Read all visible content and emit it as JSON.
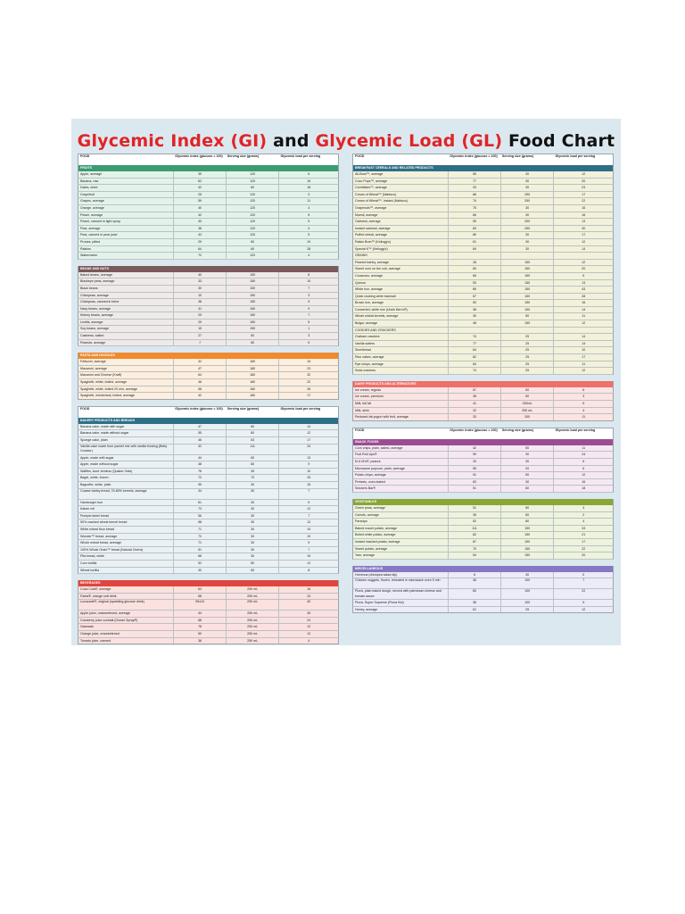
{
  "title": {
    "part1": "Glycemic Index (GI)",
    "and": "and",
    "part2": "Glycemic Load (GL)",
    "part3": "Food Chart"
  },
  "headers": {
    "food": "FOOD",
    "gi": "Glycemic index (glucose = 100)",
    "serving": "Serving size (grams)",
    "gl": "Glycemic load per serving"
  },
  "colors": {
    "fruits": "#3a9b74",
    "beans": "#7a5a5a",
    "pasta": "#f08a2e",
    "bakery": "#2e6f86",
    "beverages": "#e0463e",
    "breakfast": "#2e6f86",
    "dairy": "#ef6f6a",
    "snack": "#9b4d93",
    "vegetables": "#8aa637",
    "misc": "#8877c2"
  },
  "left": [
    {
      "header": true,
      "sections": [
        {
          "name": "FRUITS",
          "key": "fruits",
          "bg": "#e4f3ea",
          "rows": [
            [
              "Apple, average",
              "39",
              "120",
              "6"
            ],
            [
              "Banana, raw",
              "62",
              "120",
              "16"
            ],
            [
              "Dates, dried",
              "42",
              "60",
              "18"
            ],
            [
              "Grapefruit",
              "25",
              "120",
              "3"
            ],
            [
              "Grapes, average",
              "59",
              "120",
              "11"
            ],
            [
              "Orange, average",
              "40",
              "120",
              "4"
            ],
            [
              "Peach, average",
              "42",
              "120",
              "5"
            ],
            [
              "Peach, canned in light syrup",
              "40",
              "120",
              "5"
            ],
            [
              "Pear, average",
              "38",
              "120",
              "4"
            ],
            [
              "Pear, canned in pear juice",
              "43",
              "120",
              "5"
            ],
            [
              "Prunes, pitted",
              "29",
              "60",
              "10"
            ],
            [
              "Raisins",
              "64",
              "60",
              "28"
            ],
            [
              "Watermelon",
              "72",
              "120",
              "4"
            ]
          ]
        },
        {
          "name": "BEANS AND NUTS",
          "key": "beans",
          "bg": "#efe9e8",
          "rows": [
            [
              "Baked beans, average",
              "40",
              "150",
              "6"
            ],
            [
              "Blackeye peas, average",
              "33",
              "150",
              "10"
            ],
            [
              "Black beans",
              "30",
              "150",
              "7"
            ],
            [
              "Chickpeas, average",
              "10",
              "150",
              "3"
            ],
            [
              "Chickpeas, canned in brine",
              "38",
              "150",
              "9"
            ],
            [
              "Navy beans, average",
              "31",
              "150",
              "9"
            ],
            [
              "Kidney beans, average",
              "29",
              "150",
              "7"
            ],
            [
              "Lentils, average",
              "29",
              "150",
              "5"
            ],
            [
              "Soy beans, average",
              "15",
              "150",
              "1"
            ],
            [
              "Cashews, salted",
              "27",
              "50",
              "3"
            ],
            [
              "Peanuts, average",
              "7",
              "50",
              "0"
            ]
          ]
        },
        {
          "name": "PASTA and NOODLES",
          "key": "pasta",
          "bg": "#fdeedd",
          "rows": [
            [
              "Fettucini, average",
              "32",
              "180",
              "15"
            ],
            [
              "Macaroni, average",
              "47",
              "180",
              "23"
            ],
            [
              "Macaroni and Cheese (Kraft)",
              "64",
              "180",
              "32"
            ],
            [
              "Spaghetti, white, boiled, average",
              "46",
              "180",
              "22"
            ],
            [
              "Spaghetti, white, boiled 20 min, average",
              "58",
              "180",
              "26"
            ],
            [
              "Spaghetti, wholemeal, boiled, average",
              "42",
              "180",
              "17"
            ]
          ]
        }
      ]
    },
    {
      "header": true,
      "sections": [
        {
          "name": "BAKERY PRODUCTS AND BREADS",
          "key": "bakery",
          "bg": "#eaf1f4",
          "rows": [
            [
              "Banana cake, made with sugar",
              "47",
              "60",
              "14"
            ],
            [
              "Banana cake, made without sugar",
              "55",
              "60",
              "12"
            ],
            [
              "Sponge cake, plain",
              "46",
              "63",
              "17"
            ],
            [
              "Vanilla cake made from packet mix with vanilla frosting (Betty Crocker)",
              "42",
              "111",
              "24"
            ],
            [
              "Apple, made with sugar",
              "44",
              "60",
              "13"
            ],
            [
              "Apple, made without sugar",
              "48",
              "60",
              "9"
            ],
            [
              "Waffles, Aunt Jemima (Quaker Oats)",
              "76",
              "35",
              "10"
            ],
            [
              "Bagel, white, frozen",
              "72",
              "70",
              "25"
            ],
            [
              "Baguette, white, plain",
              "95",
              "30",
              "15"
            ],
            [
              "Coarse barley bread, 75-80% kernels, average",
              "34",
              "30",
              "7"
            ],
            [
              "Hamburger bun",
              "61",
              "30",
              "9"
            ],
            [
              "Kaiser roll",
              "73",
              "30",
              "12"
            ],
            [
              "Pumpernickel bread",
              "56",
              "30",
              "7"
            ],
            [
              "50% cracked wheat kernel bread",
              "58",
              "30",
              "12"
            ],
            [
              "White wheat flour bread",
              "71",
              "30",
              "10"
            ],
            [
              "Wonder™ bread, average",
              "73",
              "30",
              "10"
            ],
            [
              "Whole wheat bread, average",
              "71",
              "30",
              "9"
            ],
            [
              "100% Whole Grain™ bread (Natural Ovens)",
              "51",
              "30",
              "7"
            ],
            [
              "Pita bread, white",
              "68",
              "30",
              "10"
            ],
            [
              "Corn tortilla",
              "52",
              "50",
              "12"
            ],
            [
              "Wheat tortilla",
              "30",
              "50",
              "8"
            ]
          ]
        },
        {
          "name": "BEVERAGES",
          "key": "beverages",
          "bg": "#fbe1df",
          "rows": [
            [
              "Coca Cola®, average",
              "63",
              "250 mL",
              "16"
            ],
            [
              "Fanta®, orange soft drink",
              "68",
              "250 mL",
              "23"
            ],
            [
              "Lucozade®, original (sparkling glucose drink)",
              "95±10",
              "250 mL",
              "40"
            ],
            [
              "Apple juice, unsweetened, average",
              "44",
              "250 mL",
              "30"
            ],
            [
              "Cranberry juice cocktail (Ocean Spray®)",
              "68",
              "250 mL",
              "24"
            ],
            [
              "Gatorade",
              "78",
              "250 mL",
              "12"
            ],
            [
              "Orange juice, unsweetened",
              "50",
              "250 mL",
              "12"
            ],
            [
              "Tomato juice, canned",
              "38",
              "250 mL",
              "4"
            ]
          ]
        }
      ]
    }
  ],
  "right": [
    {
      "header": true,
      "sections": [
        {
          "name": "BREAKFAST CEREALS AND RELATED PRODUCTS",
          "key": "breakfast",
          "bg": "#f3f1da",
          "rows": [
            [
              "All-Bran™, average",
              "55",
              "30",
              "12"
            ],
            [
              "Coco Pops™, average",
              "77",
              "30",
              "20"
            ],
            [
              "Cornflakes™, average",
              "93",
              "30",
              "23"
            ],
            [
              "Cream of Wheat™ (Nabisco)",
              "66",
              "250",
              "17"
            ],
            [
              "Cream of Wheat™, Instant (Nabisco)",
              "74",
              "250",
              "22"
            ],
            [
              "Grapenuts™, average",
              "75",
              "30",
              "16"
            ],
            [
              "Muesli, average",
              "66",
              "30",
              "16"
            ],
            [
              "Oatmeal, average",
              "55",
              "250",
              "13"
            ],
            [
              "Instant oatmeal, average",
              "83",
              "250",
              "30"
            ],
            [
              "Puffed wheat, average",
              "80",
              "30",
              "17"
            ],
            [
              "Raisin Bran™ (Kellogg's)",
              "61",
              "30",
              "12"
            ],
            [
              "Special K™ (Kellogg's)",
              "69",
              "30",
              "14"
            ],
            [
              "GRAINS",
              "",
              "",
              ""
            ],
            [
              "Pearled barley, average",
              "28",
              "150",
              "12"
            ],
            [
              "Sweet corn on the cob, average",
              "60",
              "150",
              "20"
            ],
            [
              "Couscous, average",
              "65",
              "150",
              "9"
            ],
            [
              "Quinoa",
              "53",
              "150",
              "13"
            ],
            [
              "White rice, average",
              "89",
              "150",
              "43"
            ],
            [
              "Quick cooking white basmati",
              "67",
              "150",
              "28"
            ],
            [
              "Brown rice, average",
              "50",
              "150",
              "16"
            ],
            [
              "Converted, white rice (Uncle Ben's®)",
              "38",
              "150",
              "14"
            ],
            [
              "Whole wheat kernels, average",
              "30",
              "50",
              "11"
            ],
            [
              "Bulgur, average",
              "48",
              "150",
              "12"
            ],
            [
              "COOKIES AND CRACKERS",
              "",
              "",
              ""
            ],
            [
              "Graham crackers",
              "74",
              "25",
              "14"
            ],
            [
              "Vanilla wafers",
              "77",
              "25",
              "14"
            ],
            [
              "Shortbread",
              "64",
              "25",
              "10"
            ],
            [
              "Rice cakes, average",
              "82",
              "25",
              "17"
            ],
            [
              "Rye crisps, average",
              "64",
              "25",
              "11"
            ],
            [
              "Soda crackers",
              "74",
              "25",
              "12"
            ]
          ]
        },
        {
          "name": "DAIRY PRODUCTS AND ALTERNATIVES",
          "key": "dairy",
          "bg": "#fbe4e2",
          "rows": [
            [
              "Ice cream, regular",
              "57",
              "50",
              "6"
            ],
            [
              "Ice cream, premium",
              "38",
              "50",
              "3"
            ],
            [
              "Milk, full fat",
              "41",
              "250mL",
              "5"
            ],
            [
              "Milk, skim",
              "32",
              "250 mL",
              "4"
            ],
            [
              "Reduced-fat yogurt with fruit, average",
              "33",
              "200",
              "11"
            ]
          ]
        }
      ]
    },
    {
      "header": true,
      "sections": [
        {
          "name": "SNACK FOODS",
          "key": "snack",
          "bg": "#f5e8f3",
          "rows": [
            [
              "Corn chips, plain, salted, average",
              "42",
              "50",
              "11"
            ],
            [
              "Fruit Roll-Ups®",
              "99",
              "30",
              "24"
            ],
            [
              "M & M's®, peanut",
              "33",
              "30",
              "6"
            ],
            [
              "Microwave popcorn, plain, average",
              "55",
              "20",
              "6"
            ],
            [
              "Potato chips, average",
              "51",
              "50",
              "12"
            ],
            [
              "Pretzels, oven-baked",
              "83",
              "30",
              "16"
            ],
            [
              "Snickers Bar®",
              "51",
              "60",
              "18"
            ]
          ]
        },
        {
          "name": "VEGETABLES",
          "key": "vegetables",
          "bg": "#eef3dd",
          "rows": [
            [
              "Green peas, average",
              "51",
              "80",
              "4"
            ],
            [
              "Carrots, average",
              "35",
              "80",
              "2"
            ],
            [
              "Parsnips",
              "52",
              "80",
              "4"
            ],
            [
              "Baked russet potato, average",
              "111",
              "150",
              "33"
            ],
            [
              "Boiled white potato, average",
              "82",
              "150",
              "21"
            ],
            [
              "Instant mashed potato, average",
              "87",
              "150",
              "17"
            ],
            [
              "Sweet potato, average",
              "70",
              "150",
              "22"
            ],
            [
              "Yam, average",
              "54",
              "150",
              "20"
            ]
          ]
        },
        {
          "name": "MISCELLANEOUS",
          "key": "misc",
          "bg": "#ecebf7",
          "rows": [
            [
              "Hummus (chickpea salad dip)",
              "6",
              "30",
              "0"
            ],
            [
              "Chicken nuggets, frozen, reheated in microwave oven 5 min",
              "46",
              "100",
              "7"
            ],
            [
              "Pizza, plain baked dough, served with parmesan cheese and tomato sauce",
              "80",
              "100",
              "22"
            ],
            [
              "Pizza, Super Supreme (Pizza Hut)",
              "36",
              "100",
              "9"
            ],
            [
              "Honey, average",
              "61",
              "25",
              "12"
            ]
          ]
        }
      ]
    }
  ]
}
